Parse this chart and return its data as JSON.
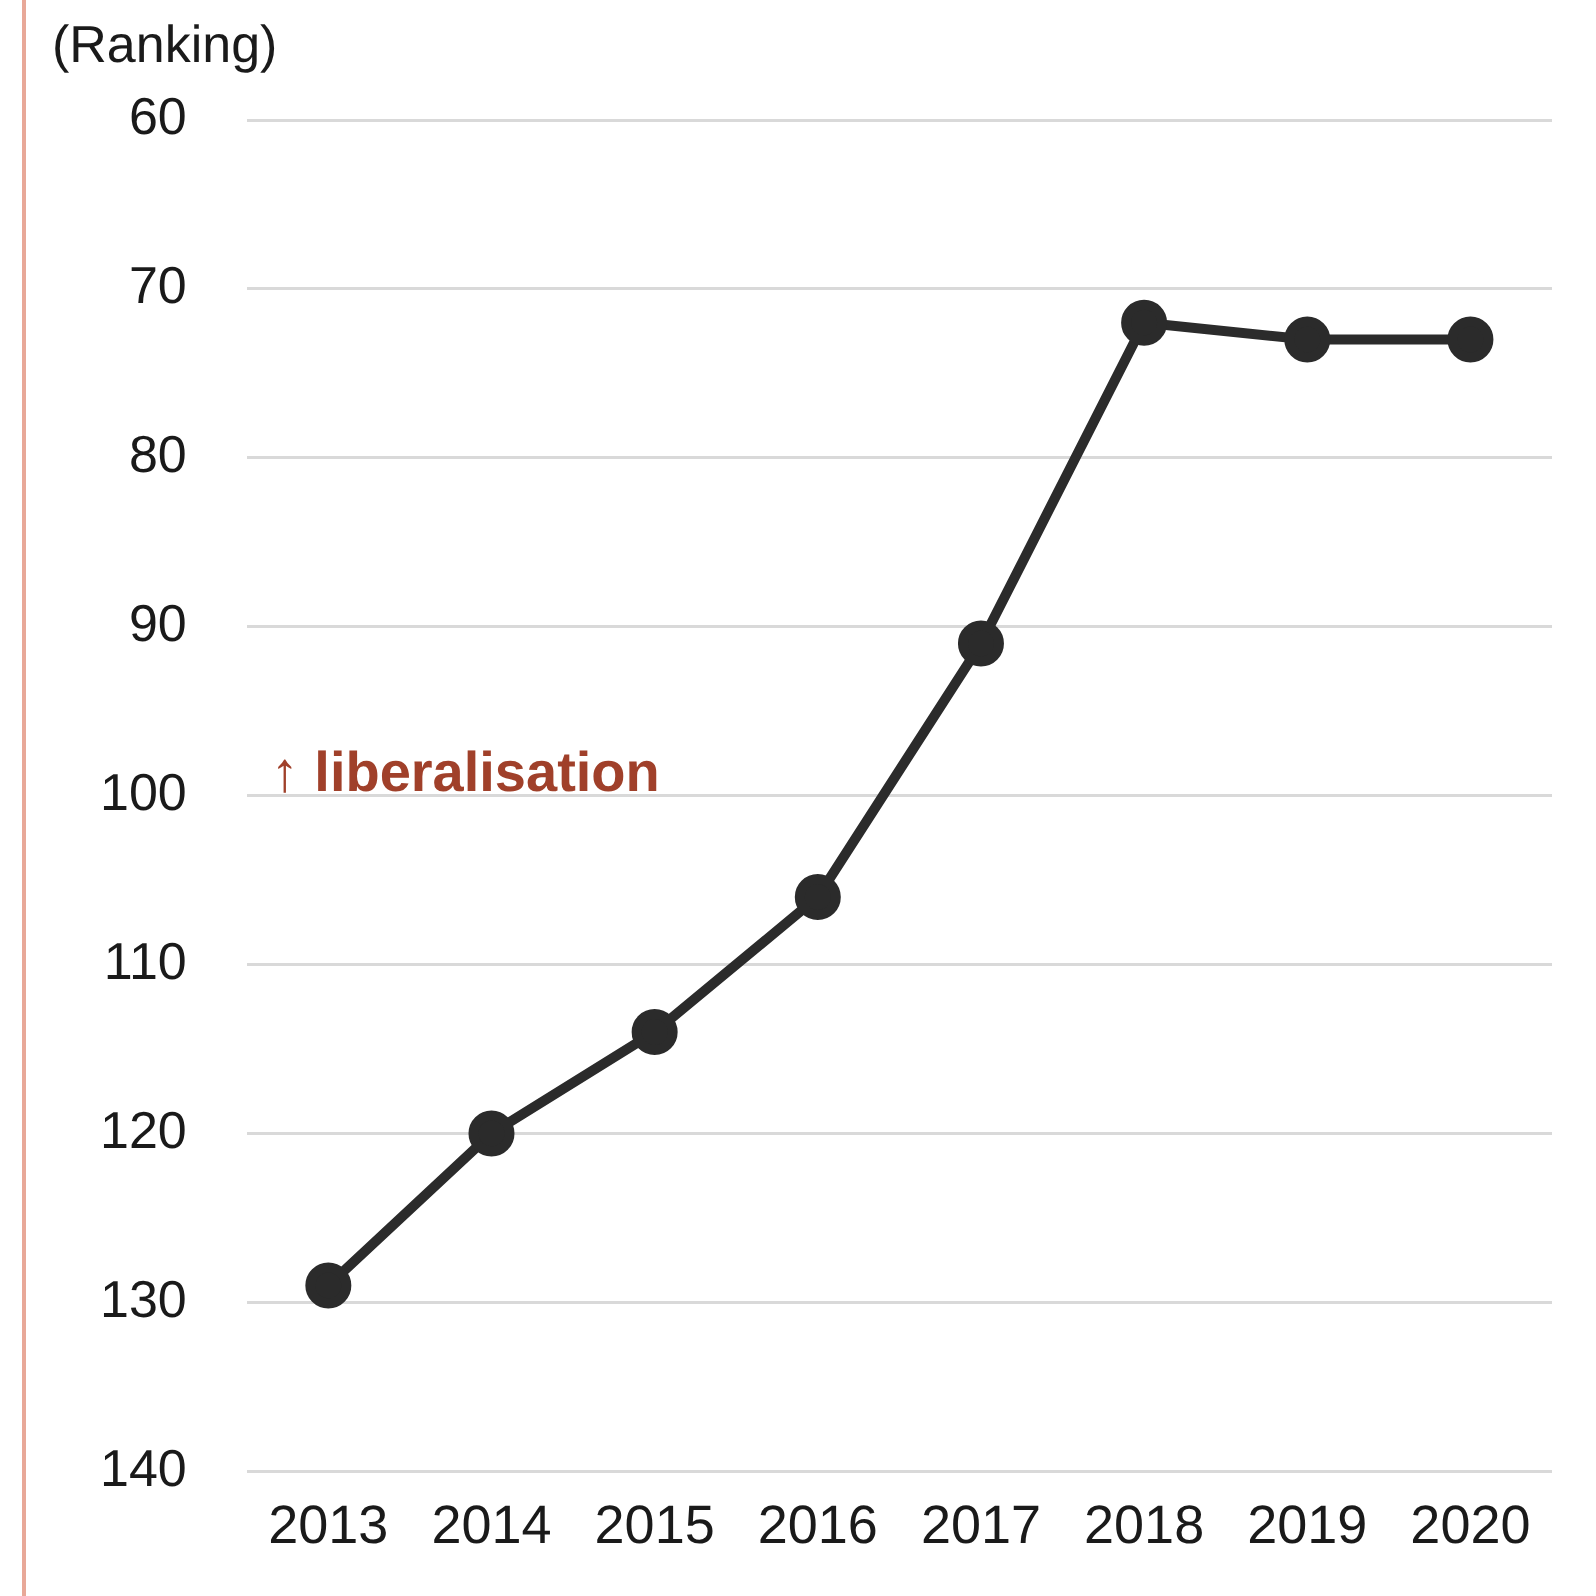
{
  "chart_data": {
    "type": "line",
    "ylabel": "(Ranking)",
    "categories": [
      "2013",
      "2014",
      "2015",
      "2016",
      "2017",
      "2018",
      "2019",
      "2020"
    ],
    "series": [
      {
        "color": "#2b2b2b",
        "values": [
          129,
          120,
          114,
          106,
          91,
          72,
          73,
          73
        ]
      }
    ],
    "ylim": [
      140,
      60
    ],
    "yticks": [
      60,
      70,
      80,
      90,
      100,
      110,
      120,
      130,
      140
    ],
    "grid": "y",
    "legend": false,
    "marker": "circle",
    "line_style": "solid",
    "annotations": [
      "↑ liberalisation"
    ]
  }
}
